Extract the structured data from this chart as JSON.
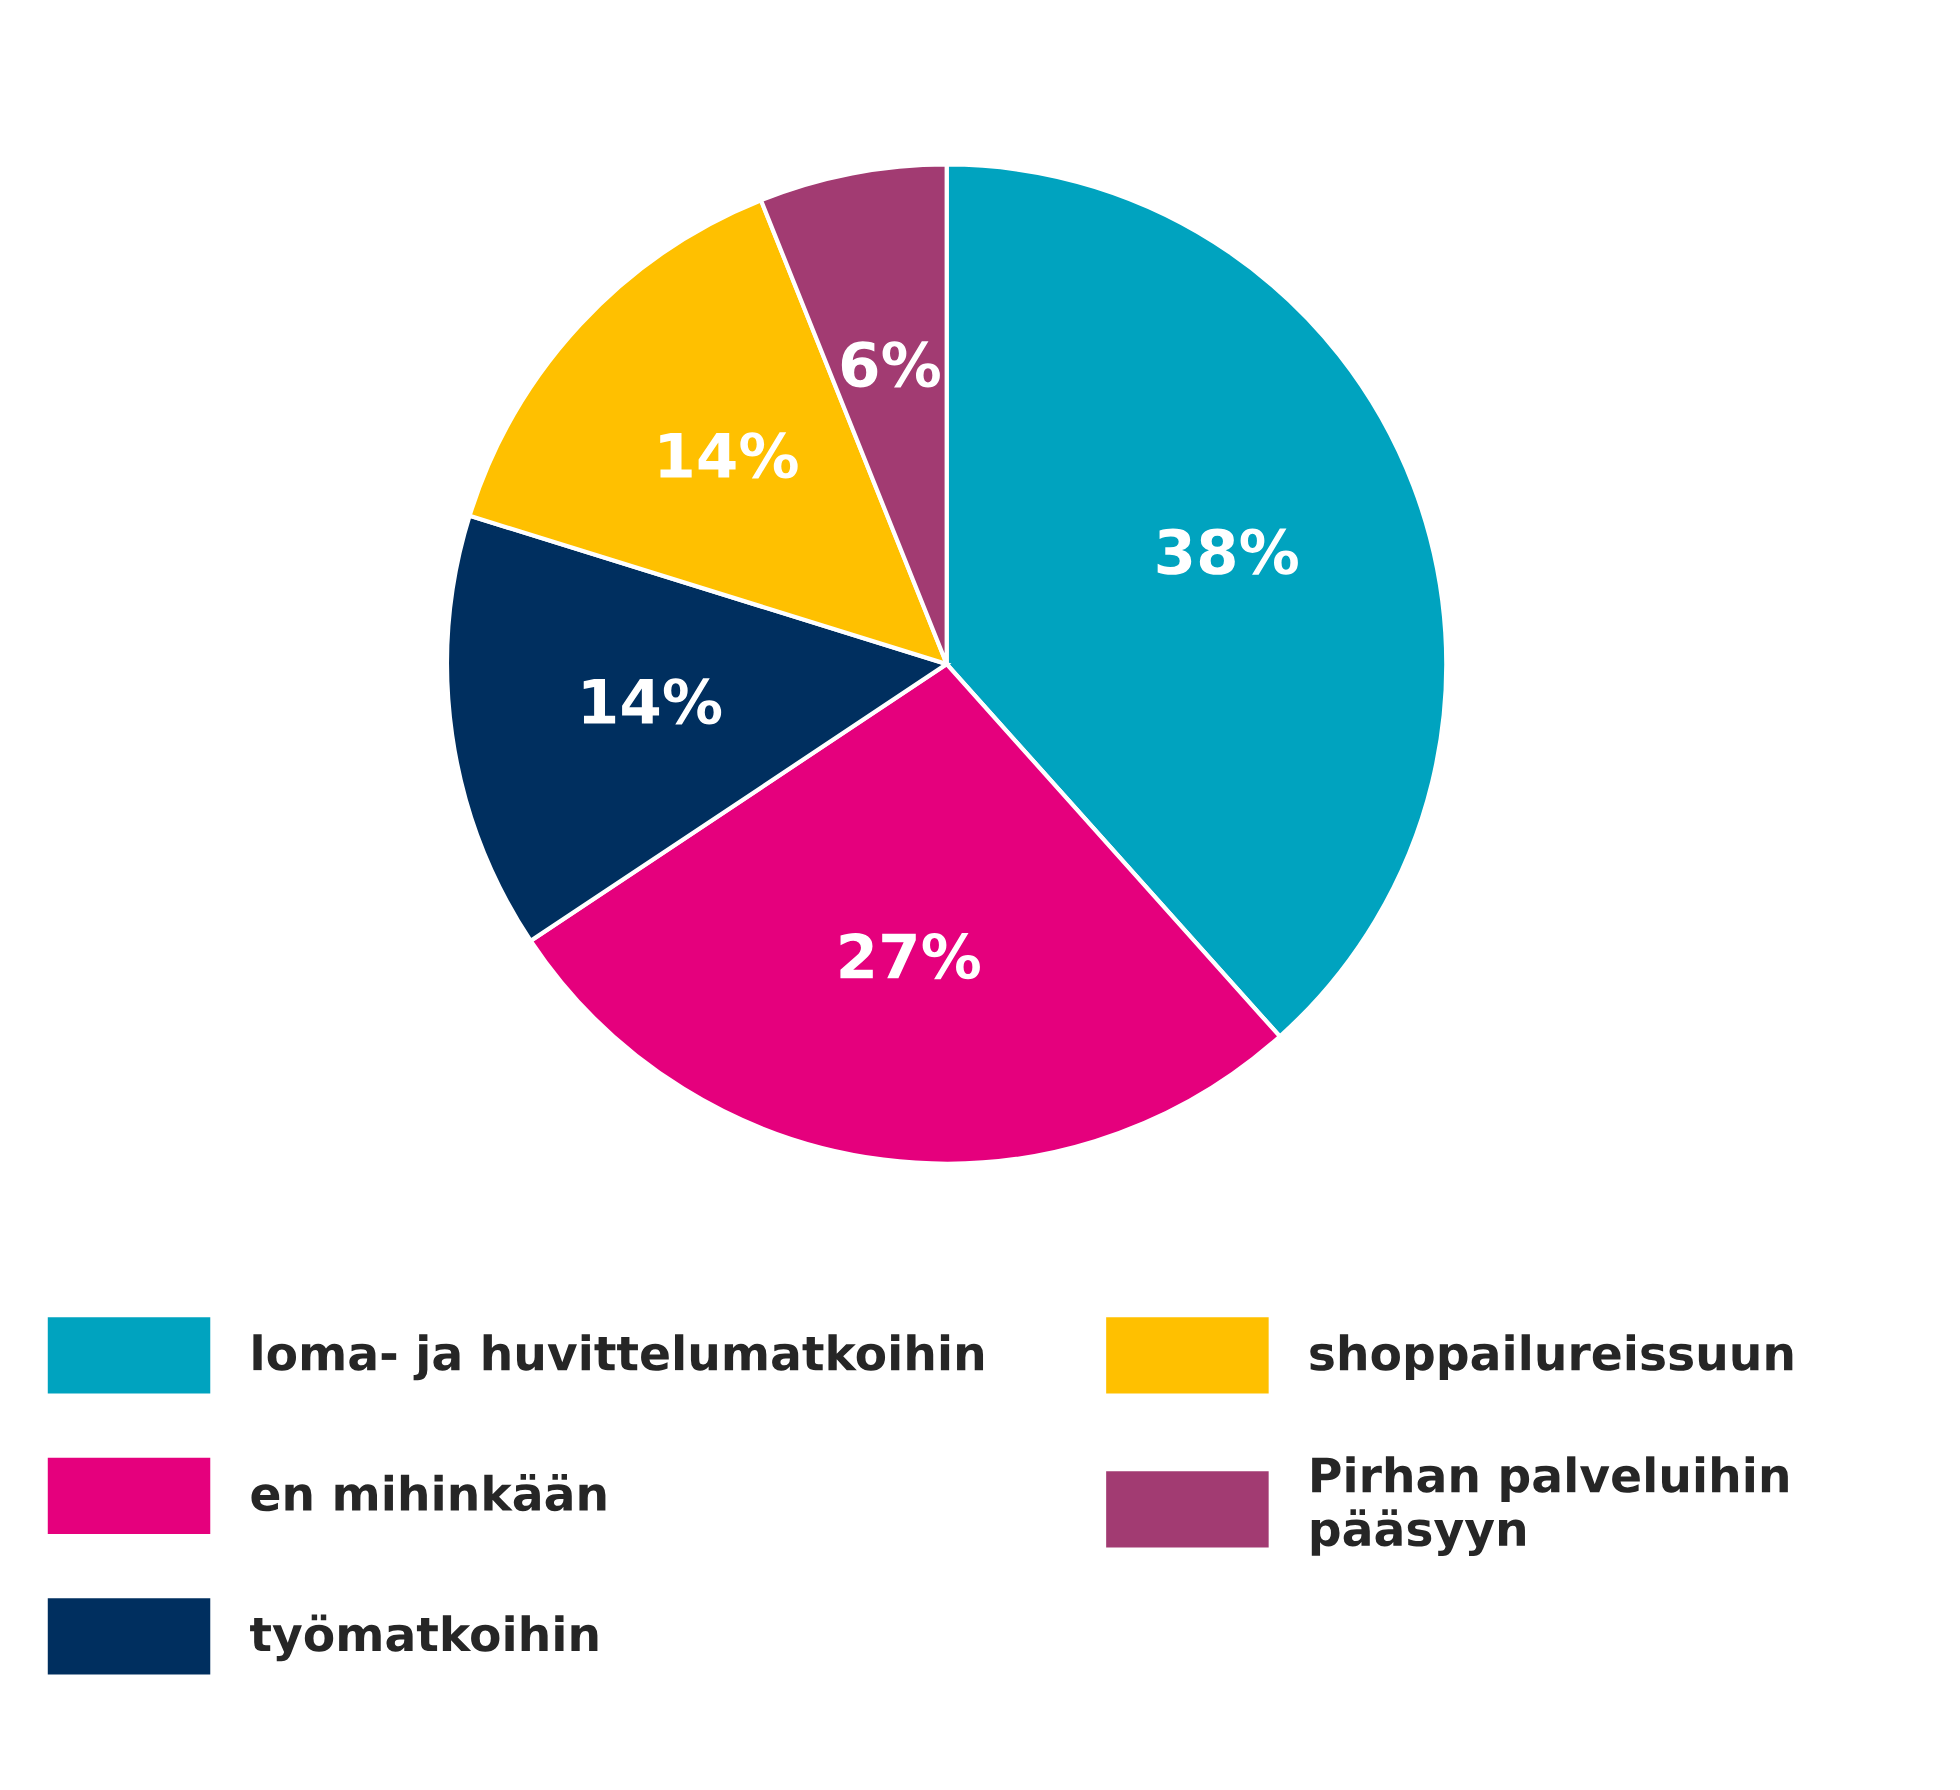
{
  "chart_data": {
    "type": "pie",
    "categories": [
      "loma- ja huvittelumatkoihin",
      "en mihinkään",
      "työmatkoihin",
      "shoppailureissuun",
      "Pirhan palveluihin\npääsyyn"
    ],
    "values": [
      38,
      27,
      14,
      14,
      6
    ],
    "colors": [
      "#00a3bf",
      "#e5007d",
      "#002f5f",
      "#ffc000",
      "#a23b72"
    ],
    "value_labels": [
      "38%",
      "27%",
      "14%",
      "14%",
      "6%"
    ],
    "legend": "bottom"
  }
}
